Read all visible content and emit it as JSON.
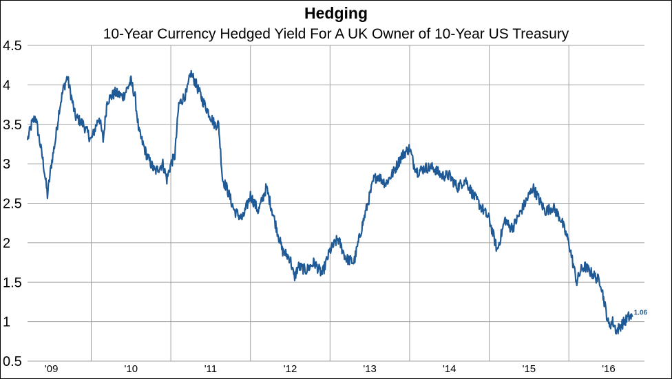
{
  "title": "Hedging",
  "subtitle": "10-Year Currency Hedged Yield For A UK Owner of 10-Year US Treasury",
  "chart_data": {
    "type": "line",
    "title": "Hedging",
    "subtitle": "10-Year Currency Hedged Yield For A UK Owner of 10-Year US Treasury",
    "xlabel": "",
    "ylabel": "",
    "ylim": [
      0.5,
      4.5
    ],
    "xlim": [
      2008.7,
      2016.45
    ],
    "y_ticks": [
      "0.5",
      "1",
      "1.5",
      "2",
      "2.5",
      "3",
      "3.5",
      "4",
      "4.5"
    ],
    "x_ticks": [
      {
        "value": 2009,
        "label": "'09"
      },
      {
        "value": 2010,
        "label": "'10"
      },
      {
        "value": 2011,
        "label": "'11"
      },
      {
        "value": 2012,
        "label": "'12"
      },
      {
        "value": 2013,
        "label": "'13"
      },
      {
        "value": 2014,
        "label": "'14"
      },
      {
        "value": 2015,
        "label": "'15"
      },
      {
        "value": 2016,
        "label": "'16"
      }
    ],
    "grid": true,
    "line_color": "#1f5a96",
    "last_value_label": "1.06",
    "series": [
      {
        "x": [
          2008.7,
          2008.75,
          2008.8,
          2008.85,
          2008.9,
          2008.95,
          2009.0,
          2009.05,
          2009.1,
          2009.15,
          2009.2,
          2009.3,
          2009.4,
          2009.5,
          2009.6,
          2009.65,
          2009.7,
          2009.8,
          2009.9,
          2010.0,
          2010.05,
          2010.1,
          2010.2,
          2010.3,
          2010.4,
          2010.45,
          2010.5,
          2010.55,
          2010.6,
          2010.7,
          2010.75,
          2010.8,
          2010.9,
          2011.0,
          2011.05,
          2011.1,
          2011.15,
          2011.2,
          2011.3,
          2011.4,
          2011.5,
          2011.6,
          2011.7,
          2011.8,
          2011.9,
          2012.0,
          2012.05,
          2012.1,
          2012.2,
          2012.3,
          2012.4,
          2012.5,
          2012.6,
          2012.7,
          2012.8,
          2012.9,
          2013.0,
          2013.05,
          2013.1,
          2013.2,
          2013.3,
          2013.4,
          2013.5,
          2013.55,
          2013.6,
          2013.7,
          2013.8,
          2013.9,
          2014.0,
          2014.1,
          2014.2,
          2014.3,
          2014.4,
          2014.5,
          2014.6,
          2014.7,
          2014.75,
          2014.8,
          2014.9,
          2015.0,
          2015.05,
          2015.1,
          2015.2,
          2015.3,
          2015.4,
          2015.5,
          2015.6,
          2015.65,
          2015.7,
          2015.8,
          2015.9,
          2016.0,
          2016.05,
          2016.1,
          2016.15,
          2016.2,
          2016.25,
          2016.3
        ],
        "y": [
          3.3,
          3.5,
          3.6,
          3.3,
          3.0,
          2.6,
          3.0,
          3.3,
          3.7,
          3.95,
          4.1,
          3.6,
          3.5,
          3.3,
          3.6,
          3.3,
          3.8,
          3.9,
          3.85,
          4.05,
          3.85,
          3.4,
          3.1,
          2.9,
          3.0,
          2.8,
          3.0,
          3.1,
          3.75,
          3.9,
          4.15,
          4.05,
          3.8,
          3.6,
          3.5,
          3.5,
          2.8,
          2.7,
          2.4,
          2.3,
          2.6,
          2.4,
          2.7,
          2.3,
          1.9,
          1.8,
          1.55,
          1.7,
          1.65,
          1.75,
          1.6,
          1.9,
          2.05,
          1.8,
          1.75,
          2.2,
          2.6,
          2.8,
          2.85,
          2.75,
          2.9,
          3.1,
          3.2,
          3.0,
          2.9,
          2.95,
          2.95,
          2.85,
          2.85,
          2.7,
          2.8,
          2.6,
          2.45,
          2.3,
          1.9,
          2.3,
          2.2,
          2.2,
          2.4,
          2.6,
          2.7,
          2.6,
          2.4,
          2.45,
          2.3,
          2.0,
          1.5,
          1.65,
          1.7,
          1.6,
          1.5,
          0.95,
          1.0,
          0.88,
          0.95,
          1.0,
          1.06,
          1.06
        ]
      }
    ]
  }
}
